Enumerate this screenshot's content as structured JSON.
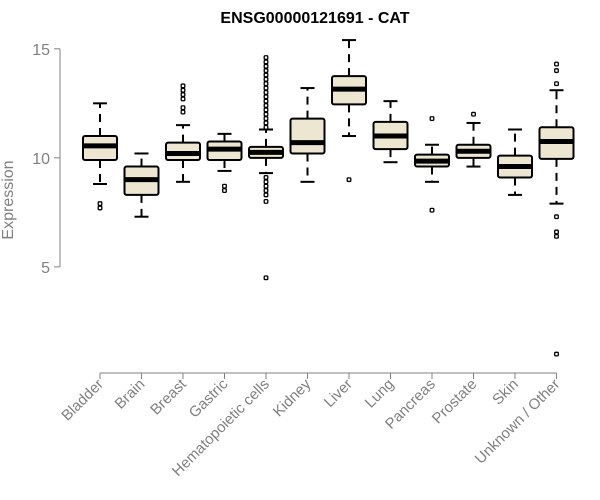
{
  "chart_data": {
    "type": "boxplot",
    "title": "ENSG00000121691 - CAT",
    "xlabel": "",
    "ylabel": "Expression",
    "ylim": [
      0.5,
      16
    ],
    "yticks": [
      5,
      10,
      15
    ],
    "grid": false,
    "colors": {
      "box_fill": "#ede6d0",
      "stroke": "#000000",
      "axis": "#808080",
      "title": "#000000"
    },
    "categories": [
      "Bladder",
      "Brain",
      "Breast",
      "Gastric",
      "Hematopoietic cells",
      "Kidney",
      "Liver",
      "Lung",
      "Pancreas",
      "Prostate",
      "Skin",
      "Unknown / Other"
    ],
    "boxes": [
      {
        "name": "Bladder",
        "whisker_low": 8.8,
        "q1": 9.9,
        "median": 10.55,
        "q3": 11.0,
        "whisker_high": 12.5,
        "outliers": [
          7.9,
          7.7
        ]
      },
      {
        "name": "Brain",
        "whisker_low": 7.3,
        "q1": 8.3,
        "median": 9.0,
        "q3": 9.6,
        "whisker_high": 10.2,
        "outliers": []
      },
      {
        "name": "Breast",
        "whisker_low": 8.9,
        "q1": 9.9,
        "median": 10.2,
        "q3": 10.7,
        "whisker_high": 11.5,
        "outliers": [
          12.1,
          12.3,
          12.7,
          12.9,
          13.1,
          13.3
        ]
      },
      {
        "name": "Gastric",
        "whisker_low": 9.4,
        "q1": 9.9,
        "median": 10.4,
        "q3": 10.75,
        "whisker_high": 11.1,
        "outliers": [
          8.7,
          8.5
        ]
      },
      {
        "name": "Hematopoietic cells",
        "whisker_low": 9.3,
        "q1": 10.0,
        "median": 10.25,
        "q3": 10.5,
        "whisker_high": 11.3,
        "outliers": [
          11.4,
          11.6,
          11.8,
          12.0,
          12.2,
          12.4,
          12.6,
          12.8,
          13.0,
          13.2,
          13.4,
          13.6,
          13.8,
          14.0,
          14.2,
          14.4,
          14.6,
          9.1,
          8.9,
          8.7,
          8.5,
          8.3,
          8.0,
          4.5
        ]
      },
      {
        "name": "Kidney",
        "whisker_low": 8.9,
        "q1": 10.2,
        "median": 10.7,
        "q3": 11.8,
        "whisker_high": 13.2,
        "outliers": []
      },
      {
        "name": "Liver",
        "whisker_low": 11.0,
        "q1": 12.45,
        "median": 13.15,
        "q3": 13.75,
        "whisker_high": 15.4,
        "outliers": [
          9.0
        ]
      },
      {
        "name": "Lung",
        "whisker_low": 9.8,
        "q1": 10.4,
        "median": 11.0,
        "q3": 11.65,
        "whisker_high": 12.6,
        "outliers": []
      },
      {
        "name": "Pancreas",
        "whisker_low": 8.9,
        "q1": 9.6,
        "median": 9.85,
        "q3": 10.15,
        "whisker_high": 10.6,
        "outliers": [
          11.8,
          7.6
        ]
      },
      {
        "name": "Prostate",
        "whisker_low": 9.6,
        "q1": 10.0,
        "median": 10.3,
        "q3": 10.6,
        "whisker_high": 11.6,
        "outliers": [
          12.0
        ]
      },
      {
        "name": "Skin",
        "whisker_low": 8.3,
        "q1": 9.1,
        "median": 9.6,
        "q3": 10.1,
        "whisker_high": 11.3,
        "outliers": []
      },
      {
        "name": "Unknown / Other",
        "whisker_low": 7.9,
        "q1": 9.95,
        "median": 10.75,
        "q3": 11.4,
        "whisker_high": 13.1,
        "outliers": [
          13.4,
          14.0,
          14.3,
          7.3,
          6.6,
          6.4,
          1.0
        ]
      }
    ]
  }
}
